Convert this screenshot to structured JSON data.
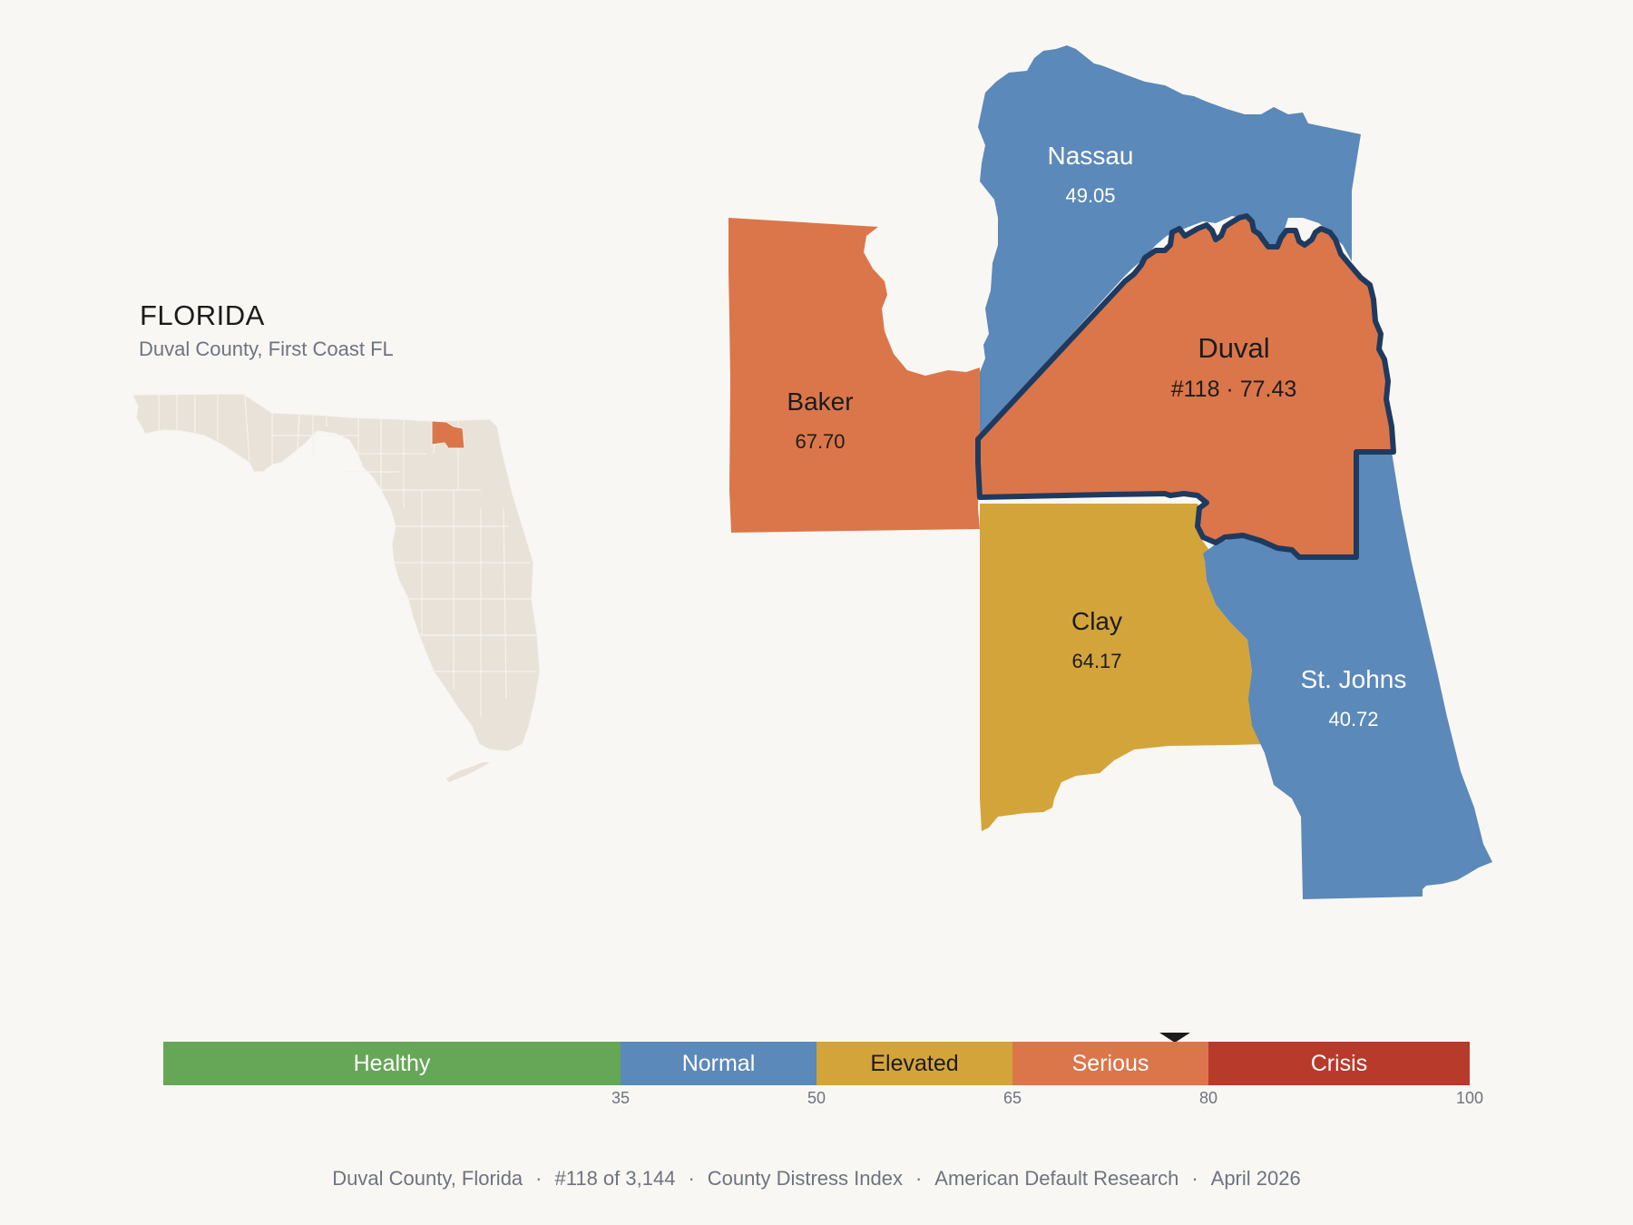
{
  "header": {
    "state": "FLORIDA",
    "subtitle": "Duval County, First Coast FL"
  },
  "colors": {
    "background": "#f9f7f3",
    "healthy": "#66a757",
    "normal": "#5b89b9",
    "elevated": "#d3a43a",
    "serious": "#db764a",
    "crisis": "#b83a2b",
    "inset_land": "#e8e2d8",
    "focus_outline": "#1f3a5f"
  },
  "inset_map": {
    "highlighted_county": "Duval"
  },
  "counties": [
    {
      "name": "Nassau",
      "value": "49.05",
      "category": "Normal"
    },
    {
      "name": "Baker",
      "value": "67.70",
      "category": "Serious"
    },
    {
      "name": "Duval",
      "value": "#118 · 77.43",
      "category": "Serious",
      "focus": true
    },
    {
      "name": "Clay",
      "value": "64.17",
      "category": "Elevated"
    },
    {
      "name": "St. Johns",
      "value": "40.72",
      "category": "Normal"
    }
  ],
  "scale": {
    "segments": [
      {
        "label": "Healthy",
        "min": 0,
        "max": 35
      },
      {
        "label": "Normal",
        "min": 35,
        "max": 50
      },
      {
        "label": "Elevated",
        "min": 50,
        "max": 65
      },
      {
        "label": "Serious",
        "min": 65,
        "max": 80
      },
      {
        "label": "Crisis",
        "min": 80,
        "max": 100
      }
    ],
    "ticks": [
      "35",
      "50",
      "65",
      "80",
      "100"
    ],
    "marker_value": 77.43
  },
  "footer": {
    "county": "Duval County, Florida",
    "rank": "#118 of 3,144",
    "index": "County Distress Index",
    "source": "American Default Research",
    "date": "April 2026"
  }
}
